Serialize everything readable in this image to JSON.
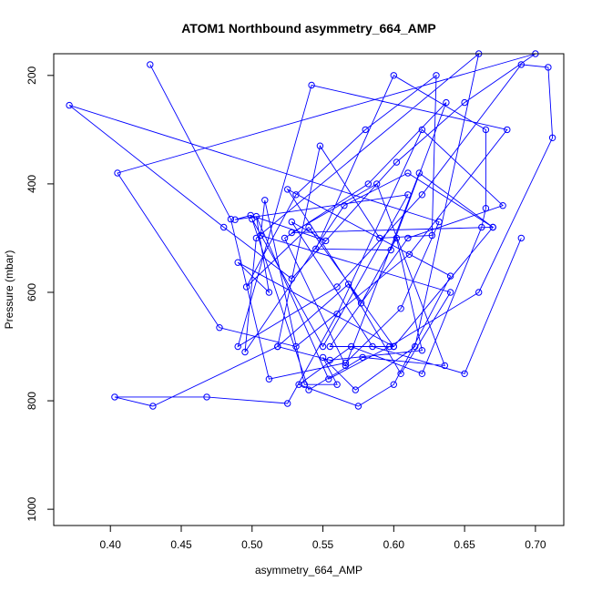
{
  "chart_data": {
    "type": "scatter",
    "title": "ATOM1 Northbound asymmetry_664_AMP",
    "xlabel": "asymmetry_664_AMP",
    "ylabel": "Pressure (mbar)",
    "x_ticks": [
      "0.40",
      "0.45",
      "0.50",
      "0.55",
      "0.60",
      "0.65",
      "0.70"
    ],
    "y_ticks": [
      "200",
      "400",
      "600",
      "800",
      "1000"
    ],
    "xlim": [
      0.36,
      0.72
    ],
    "ylim": [
      1030,
      160
    ],
    "y_reversed": true,
    "grid": false,
    "color": "#0000ff",
    "marker": "open-circle",
    "connect_points": true,
    "series": [
      {
        "x": [
          0.428,
          0.485,
          0.512,
          0.566,
          0.605,
          0.632,
          0.371,
          0.48,
          0.528,
          0.602,
          0.65,
          0.7,
          0.405,
          0.477,
          0.531,
          0.611,
          0.68,
          0.542,
          0.49,
          0.56,
          0.62,
          0.69,
          0.709,
          0.712,
          0.66,
          0.597,
          0.554,
          0.503,
          0.512,
          0.49,
          0.6,
          0.54,
          0.496,
          0.531,
          0.58,
          0.63,
          0.627,
          0.59,
          0.548,
          0.518,
          0.43,
          0.403,
          0.468,
          0.525,
          0.56,
          0.62,
          0.677,
          0.61,
          0.555,
          0.6,
          0.67,
          0.618,
          0.566,
          0.523,
          0.582,
          0.637,
          0.598,
          0.545,
          0.6,
          0.665,
          0.665,
          0.662,
          0.62,
          0.57,
          0.533,
          0.575,
          0.6,
          0.64,
          0.525,
          0.577,
          0.602,
          0.62,
          0.555,
          0.518,
          0.568,
          0.605,
          0.64,
          0.506,
          0.509,
          0.537,
          0.56,
          0.55,
          0.573,
          0.615,
          0.66,
          0.503,
          0.495,
          0.565,
          0.61,
          0.67,
          0.528,
          0.588,
          0.636,
          0.578,
          0.54,
          0.5,
          0.55,
          0.61,
          0.488,
          0.499,
          0.552,
          0.528,
          0.585,
          0.65,
          0.69
        ],
        "y": [
          180,
          465,
          760,
          730,
          630,
          470,
          255,
          480,
          575,
          360,
          250,
          160,
          380,
          665,
          700,
          530,
          300,
          218,
          700,
          590,
          420,
          180,
          185,
          315,
          600,
          700,
          760,
          460,
          600,
          545,
          700,
          480,
          590,
          420,
          300,
          200,
          495,
          500,
          330,
          700,
          810,
          793,
          793,
          805,
          640,
          300,
          440,
          500,
          700,
          700,
          480,
          380,
          735,
          500,
          400,
          250,
          522,
          520,
          200,
          300,
          445,
          480,
          750,
          700,
          770,
          810,
          770,
          570,
          410,
          620,
          500,
          707,
          725,
          700,
          585,
          750,
          600,
          495,
          430,
          770,
          770,
          720,
          780,
          700,
          160,
          500,
          710,
          440,
          380,
          480,
          490,
          400,
          735,
          720,
          780,
          465,
          700,
          420,
          466,
          458,
          505,
          470,
          700,
          750,
          500
        ]
      }
    ]
  }
}
